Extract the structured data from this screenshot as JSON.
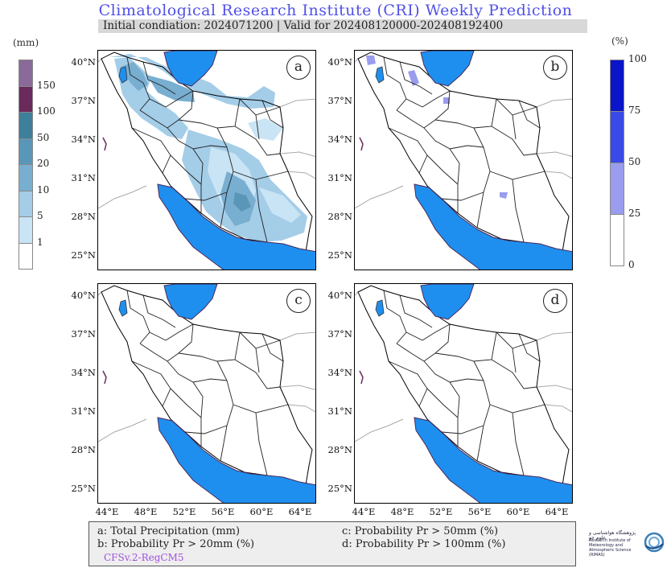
{
  "title": "Climatological Research Institute (CRI) Weekly Prediction",
  "subtitle": "Initial condiation: 2024071200 | Valid for 202408120000-202408192400",
  "panels": [
    {
      "label": "a"
    },
    {
      "label": "b"
    },
    {
      "label": "c"
    },
    {
      "label": "d"
    }
  ],
  "lat_ticks": [
    "40°N",
    "37°N",
    "34°N",
    "31°N",
    "28°N",
    "25°N"
  ],
  "lon_ticks": [
    "44°E",
    "48°E",
    "52°E",
    "56°E",
    "60°E",
    "64°E"
  ],
  "precip_bar": {
    "unit": "(mm)",
    "labels": [
      "150",
      "100",
      "50",
      "20",
      "10",
      "5",
      "1"
    ],
    "colors": [
      "#8a6a9a",
      "#6b2a5c",
      "#3e7f9c",
      "#5a96b8",
      "#78aed0",
      "#a4cde8",
      "#c9e4f4",
      "#ffffff"
    ]
  },
  "prob_bar": {
    "unit": "(%)",
    "labels": [
      "100",
      "75",
      "50",
      "25",
      "0"
    ],
    "colors": [
      "#0a14c8",
      "#3a4ae6",
      "#9a9cee",
      "#ffffff"
    ]
  },
  "legend": {
    "a": "a: Total Precipitation (mm)",
    "b": "b: Probability Pr > 20mm (%)",
    "c": "c: Probability Pr > 50mm (%)",
    "d": "d: Probability Pr > 100mm (%)",
    "model": "CFSv.2-RegCM5"
  },
  "logo": {
    "name_fa": "پژوهشگاه هواشناسی و علوم جو",
    "name_en": "Research Institute of Meteorology and Atmospheric Science (RIMAS)"
  },
  "colors": {
    "sea": "#1f8fef",
    "title": "#5050e8"
  }
}
